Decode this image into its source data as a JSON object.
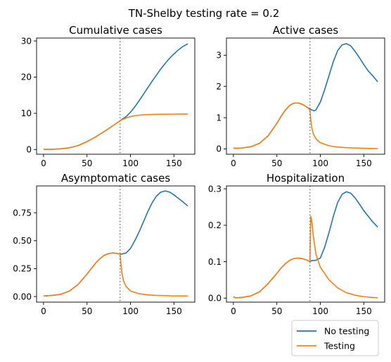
{
  "figure": {
    "suptitle": "TN-Shelby testing rate = 0.2"
  },
  "legend": {
    "placement": "bottom-right",
    "items": [
      {
        "label": "No testing",
        "color": "#1f77b4"
      },
      {
        "label": "Testing",
        "color": "#ff7f0e"
      }
    ]
  },
  "chart_data": [
    {
      "type": "line",
      "title": "Cumulative cases",
      "xlim": [
        -8,
        174
      ],
      "ylim": [
        -1.3,
        30.8
      ],
      "xticks": [
        0,
        50,
        100,
        150
      ],
      "yticks": [
        0,
        10,
        20,
        30
      ],
      "ytick_labels": [
        "0",
        "10",
        "20",
        "30"
      ],
      "intervention_day": 88,
      "series": [
        {
          "name": "No testing",
          "color": "#1f77b4",
          "x": [
            0,
            10,
            20,
            30,
            40,
            50,
            60,
            70,
            80,
            88,
            90,
            95,
            100,
            105,
            110,
            115,
            120,
            125,
            130,
            135,
            140,
            145,
            150,
            155,
            160,
            166
          ],
          "y": [
            0.05,
            0.08,
            0.2,
            0.5,
            1.1,
            2.2,
            3.5,
            5.0,
            6.6,
            7.9,
            8.3,
            9.1,
            10.3,
            11.8,
            13.5,
            15.3,
            17.1,
            18.9,
            20.6,
            22.3,
            23.8,
            25.2,
            26.4,
            27.5,
            28.4,
            29.2
          ]
        },
        {
          "name": "Testing",
          "color": "#ff7f0e",
          "x": [
            0,
            10,
            20,
            30,
            40,
            50,
            60,
            70,
            80,
            88,
            90,
            95,
            100,
            105,
            110,
            120,
            130,
            140,
            150,
            160,
            166
          ],
          "y": [
            0.05,
            0.08,
            0.2,
            0.5,
            1.1,
            2.2,
            3.5,
            5.0,
            6.6,
            7.9,
            8.2,
            8.7,
            9.1,
            9.35,
            9.5,
            9.65,
            9.72,
            9.76,
            9.79,
            9.8,
            9.8
          ]
        }
      ]
    },
    {
      "type": "line",
      "title": "Active cases",
      "xlim": [
        -8,
        174
      ],
      "ylim": [
        -0.17,
        3.55
      ],
      "xticks": [
        0,
        50,
        100,
        150
      ],
      "yticks": [
        0,
        1,
        2,
        3
      ],
      "ytick_labels": [
        "0",
        "1",
        "2",
        "3"
      ],
      "intervention_day": 88,
      "series": [
        {
          "name": "No testing",
          "color": "#1f77b4",
          "x": [
            0,
            10,
            20,
            30,
            40,
            50,
            55,
            60,
            65,
            70,
            75,
            80,
            85,
            88,
            90,
            93,
            95,
            100,
            105,
            110,
            115,
            120,
            125,
            130,
            135,
            140,
            145,
            150,
            155,
            160,
            166
          ],
          "y": [
            0.02,
            0.03,
            0.07,
            0.18,
            0.42,
            0.82,
            1.05,
            1.25,
            1.4,
            1.47,
            1.47,
            1.42,
            1.33,
            1.28,
            1.25,
            1.22,
            1.25,
            1.5,
            1.9,
            2.35,
            2.8,
            3.15,
            3.33,
            3.37,
            3.3,
            3.12,
            2.92,
            2.7,
            2.5,
            2.35,
            2.15
          ]
        },
        {
          "name": "Testing",
          "color": "#ff7f0e",
          "x": [
            0,
            10,
            20,
            30,
            40,
            50,
            55,
            60,
            65,
            70,
            75,
            80,
            85,
            88,
            89,
            90,
            92,
            95,
            100,
            110,
            120,
            130,
            140,
            150,
            166
          ],
          "y": [
            0.02,
            0.03,
            0.07,
            0.18,
            0.42,
            0.82,
            1.05,
            1.25,
            1.4,
            1.47,
            1.47,
            1.42,
            1.33,
            1.25,
            0.95,
            0.7,
            0.48,
            0.32,
            0.2,
            0.1,
            0.06,
            0.04,
            0.03,
            0.02,
            0.01
          ]
        }
      ]
    },
    {
      "type": "line",
      "title": "Asymptomatic cases",
      "xlim": [
        -8,
        174
      ],
      "ylim": [
        -0.05,
        0.99
      ],
      "xticks": [
        0,
        50,
        100,
        150
      ],
      "yticks": [
        0,
        0.25,
        0.5,
        0.75
      ],
      "ytick_labels": [
        "0.00",
        "0.25",
        "0.50",
        "0.75"
      ],
      "intervention_day": 88,
      "series": [
        {
          "name": "No testing",
          "color": "#1f77b4",
          "x": [
            0,
            10,
            20,
            30,
            40,
            50,
            55,
            60,
            65,
            70,
            75,
            80,
            85,
            88,
            90,
            95,
            100,
            105,
            110,
            115,
            120,
            125,
            130,
            135,
            140,
            145,
            150,
            155,
            160,
            166
          ],
          "y": [
            0.005,
            0.01,
            0.02,
            0.05,
            0.11,
            0.2,
            0.25,
            0.3,
            0.34,
            0.37,
            0.385,
            0.39,
            0.385,
            0.38,
            0.38,
            0.39,
            0.43,
            0.5,
            0.58,
            0.67,
            0.76,
            0.84,
            0.9,
            0.935,
            0.945,
            0.935,
            0.91,
            0.88,
            0.85,
            0.81
          ]
        },
        {
          "name": "Testing",
          "color": "#ff7f0e",
          "x": [
            0,
            10,
            20,
            30,
            40,
            50,
            55,
            60,
            65,
            70,
            75,
            80,
            85,
            88,
            89,
            90,
            92,
            95,
            100,
            110,
            120,
            130,
            140,
            150,
            166
          ],
          "y": [
            0.005,
            0.01,
            0.02,
            0.05,
            0.11,
            0.2,
            0.25,
            0.3,
            0.34,
            0.37,
            0.385,
            0.39,
            0.385,
            0.38,
            0.3,
            0.22,
            0.14,
            0.09,
            0.05,
            0.025,
            0.015,
            0.01,
            0.008,
            0.006,
            0.005
          ]
        }
      ]
    },
    {
      "type": "line",
      "title": "Hospitalization",
      "xlim": [
        -8,
        174
      ],
      "ylim": [
        -0.011,
        0.308
      ],
      "xticks": [
        0,
        50,
        100,
        150
      ],
      "yticks": [
        0,
        0.1,
        0.2,
        0.3
      ],
      "ytick_labels": [
        "0.0",
        "0.1",
        "0.2",
        "0.3"
      ],
      "intervention_day": 88,
      "series": [
        {
          "name": "No testing",
          "color": "#1f77b4",
          "x": [
            0,
            2,
            5,
            10,
            20,
            30,
            40,
            50,
            55,
            60,
            65,
            70,
            75,
            80,
            85,
            88,
            90,
            95,
            100,
            105,
            110,
            115,
            120,
            125,
            130,
            135,
            140,
            145,
            150,
            155,
            160,
            166
          ],
          "y": [
            0.004,
            0.001,
            0.001,
            0.002,
            0.006,
            0.017,
            0.04,
            0.068,
            0.083,
            0.095,
            0.104,
            0.109,
            0.11,
            0.108,
            0.104,
            0.1,
            0.103,
            0.104,
            0.11,
            0.14,
            0.18,
            0.225,
            0.263,
            0.285,
            0.292,
            0.288,
            0.275,
            0.258,
            0.24,
            0.225,
            0.21,
            0.195
          ]
        },
        {
          "name": "Testing",
          "color": "#ff7f0e",
          "x": [
            0,
            2,
            5,
            10,
            20,
            30,
            40,
            50,
            55,
            60,
            65,
            70,
            75,
            80,
            85,
            88,
            89,
            90,
            92,
            95,
            100,
            110,
            120,
            130,
            140,
            150,
            160,
            166
          ],
          "y": [
            0.004,
            0.001,
            0.001,
            0.002,
            0.006,
            0.017,
            0.04,
            0.068,
            0.083,
            0.095,
            0.104,
            0.109,
            0.11,
            0.108,
            0.104,
            0.1,
            0.225,
            0.215,
            0.17,
            0.12,
            0.085,
            0.05,
            0.028,
            0.015,
            0.008,
            0.004,
            0.002,
            0.001
          ]
        }
      ]
    }
  ]
}
